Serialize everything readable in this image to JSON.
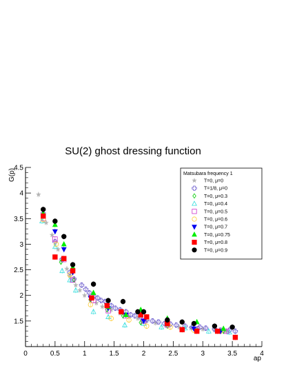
{
  "chart_data": {
    "type": "scatter",
    "title": "SU(2) ghost dressing function",
    "xlabel": "ap",
    "ylabel": "G(p)",
    "xlim": [
      0,
      4
    ],
    "ylim": [
      1,
      4.5
    ],
    "xticks": [
      0,
      0.5,
      1,
      1.5,
      2,
      2.5,
      3,
      3.5,
      4
    ],
    "yticks": [
      1.5,
      2,
      2.5,
      3,
      3.5,
      4,
      4.5
    ],
    "xtick_labels": [
      "0",
      "0.5",
      "1",
      "1.5",
      "2",
      "2.5",
      "3",
      "3.5",
      "4"
    ],
    "ytick_labels": [
      "1.5",
      "2",
      "2.5",
      "3",
      "3.5",
      "4",
      "4.5"
    ],
    "grid": false,
    "legend_title": "Matsubara frequency 1",
    "legend_position": "top-right",
    "series": [
      {
        "name": "T=0, μ=0",
        "marker": "star-filled",
        "color": "#b4b4b4",
        "points": [
          [
            0.22,
            3.97
          ],
          [
            0.3,
            3.58
          ],
          [
            0.35,
            3.42
          ],
          [
            0.45,
            3.18
          ],
          [
            0.55,
            2.9
          ],
          [
            0.62,
            2.72
          ],
          [
            0.7,
            2.52
          ],
          [
            0.75,
            2.38
          ],
          [
            0.85,
            2.2
          ],
          [
            0.92,
            2.1
          ],
          [
            1.0,
            2.0
          ],
          [
            1.1,
            1.9
          ],
          [
            1.2,
            1.85
          ],
          [
            1.3,
            1.78
          ],
          [
            1.45,
            1.72
          ],
          [
            1.6,
            1.65
          ],
          [
            1.75,
            1.58
          ],
          [
            1.9,
            1.55
          ],
          [
            2.05,
            1.5
          ],
          [
            2.2,
            1.46
          ],
          [
            2.4,
            1.42
          ],
          [
            2.6,
            1.38
          ],
          [
            2.8,
            1.36
          ],
          [
            3.0,
            1.34
          ],
          [
            3.2,
            1.32
          ],
          [
            3.4,
            1.3
          ]
        ]
      },
      {
        "name": "T=1/8, μ=0",
        "marker": "cross-open",
        "color": "#6a5acd",
        "points": [
          [
            0.3,
            3.6
          ],
          [
            0.5,
            3.05
          ],
          [
            0.62,
            2.7
          ],
          [
            0.75,
            2.45
          ],
          [
            0.82,
            2.32
          ],
          [
            0.95,
            2.2
          ],
          [
            1.02,
            2.12
          ],
          [
            1.08,
            2.05
          ],
          [
            1.15,
            1.98
          ],
          [
            1.22,
            1.95
          ],
          [
            1.28,
            1.9
          ],
          [
            1.35,
            1.88
          ],
          [
            1.45,
            1.8
          ],
          [
            1.52,
            1.75
          ],
          [
            1.6,
            1.72
          ],
          [
            1.7,
            1.68
          ],
          [
            1.78,
            1.62
          ],
          [
            1.85,
            1.6
          ],
          [
            1.95,
            1.58
          ],
          [
            2.05,
            1.52
          ],
          [
            2.15,
            1.5
          ],
          [
            2.25,
            1.48
          ],
          [
            2.35,
            1.45
          ],
          [
            2.45,
            1.44
          ],
          [
            2.55,
            1.42
          ],
          [
            2.7,
            1.4
          ],
          [
            2.82,
            1.38
          ],
          [
            2.95,
            1.38
          ],
          [
            3.05,
            1.36
          ],
          [
            3.2,
            1.34
          ],
          [
            3.3,
            1.32
          ],
          [
            3.45,
            1.32
          ],
          [
            3.55,
            1.3
          ]
        ]
      },
      {
        "name": "T=0, μ=0.3",
        "marker": "diamond-open",
        "color": "#00cc00",
        "points": [
          [
            0.3,
            3.55
          ],
          [
            0.6,
            2.65
          ],
          [
            0.82,
            2.3
          ],
          [
            1.1,
            1.92
          ],
          [
            1.38,
            1.72
          ],
          [
            1.65,
            1.6
          ],
          [
            1.95,
            1.47
          ],
          [
            2.4,
            1.4
          ],
          [
            2.9,
            1.32
          ],
          [
            3.35,
            1.3
          ]
        ]
      },
      {
        "name": "T=0, μ=0.4",
        "marker": "triangle-open",
        "color": "#33dddd",
        "points": [
          [
            0.28,
            3.45
          ],
          [
            0.5,
            2.95
          ],
          [
            0.62,
            2.48
          ],
          [
            0.75,
            2.3
          ],
          [
            0.85,
            2.1
          ],
          [
            1.15,
            1.68
          ],
          [
            1.4,
            1.58
          ],
          [
            1.68,
            1.42
          ],
          [
            2.0,
            1.45
          ],
          [
            2.3,
            1.38
          ],
          [
            2.7,
            1.36
          ],
          [
            3.1,
            1.3
          ],
          [
            3.45,
            1.28
          ]
        ]
      },
      {
        "name": "T=0, μ=0.5",
        "marker": "square-open",
        "color": "#cc33cc",
        "points": [
          [
            0.3,
            3.5
          ],
          [
            0.5,
            3.1
          ],
          [
            0.65,
            2.7
          ],
          [
            0.8,
            2.3
          ],
          [
            1.15,
            1.9
          ],
          [
            1.4,
            1.7
          ],
          [
            1.7,
            1.6
          ],
          [
            2.0,
            1.5
          ],
          [
            2.4,
            1.42
          ],
          [
            2.9,
            1.34
          ],
          [
            3.4,
            1.3
          ]
        ]
      },
      {
        "name": "T=0, μ=0.6",
        "marker": "circle-open",
        "color": "#ffcc33",
        "points": [
          [
            0.3,
            3.48
          ],
          [
            0.52,
            3.0
          ],
          [
            0.75,
            2.4
          ],
          [
            1.1,
            1.82
          ],
          [
            1.45,
            1.55
          ],
          [
            1.75,
            1.52
          ],
          [
            2.05,
            1.4
          ],
          [
            2.45,
            1.38
          ],
          [
            2.85,
            1.32
          ],
          [
            3.3,
            1.3
          ]
        ]
      },
      {
        "name": "T=0, μ=0.7",
        "marker": "triangle-down-filled",
        "color": "#0000ee",
        "points": [
          [
            0.3,
            3.55
          ],
          [
            0.5,
            3.25
          ],
          [
            0.65,
            2.9
          ],
          [
            0.8,
            2.45
          ],
          [
            1.1,
            1.95
          ],
          [
            1.4,
            1.75
          ],
          [
            1.7,
            1.62
          ],
          [
            2.0,
            1.5
          ],
          [
            2.4,
            1.45
          ],
          [
            2.85,
            1.35
          ],
          [
            3.3,
            1.3
          ]
        ]
      },
      {
        "name": "T=0, μ=0.75",
        "marker": "triangle-up-filled",
        "color": "#00ee00",
        "points": [
          [
            0.3,
            3.6
          ],
          [
            0.5,
            3.38
          ],
          [
            0.65,
            3.0
          ],
          [
            0.8,
            2.55
          ],
          [
            1.15,
            2.05
          ],
          [
            1.4,
            1.78
          ],
          [
            1.7,
            1.62
          ],
          [
            1.95,
            1.72
          ],
          [
            2.4,
            1.55
          ],
          [
            2.9,
            1.48
          ],
          [
            3.35,
            1.35
          ]
        ]
      },
      {
        "name": "T=0, μ=0.8",
        "marker": "square-filled",
        "color": "#ff0000",
        "points": [
          [
            0.3,
            3.55
          ],
          [
            0.5,
            2.75
          ],
          [
            0.65,
            2.72
          ],
          [
            0.8,
            2.48
          ],
          [
            1.12,
            1.95
          ],
          [
            1.38,
            1.8
          ],
          [
            1.62,
            1.68
          ],
          [
            1.95,
            1.62
          ],
          [
            2.05,
            1.58
          ],
          [
            2.4,
            1.45
          ],
          [
            2.65,
            1.33
          ],
          [
            2.9,
            1.3
          ],
          [
            3.25,
            1.3
          ],
          [
            3.55,
            1.18
          ]
        ]
      },
      {
        "name": "T=0, μ=0.9",
        "marker": "circle-filled",
        "color": "#000000",
        "points": [
          [
            0.3,
            3.68
          ],
          [
            0.5,
            3.45
          ],
          [
            0.65,
            3.15
          ],
          [
            0.8,
            2.6
          ],
          [
            1.15,
            2.22
          ],
          [
            1.4,
            1.9
          ],
          [
            1.65,
            1.88
          ],
          [
            1.9,
            1.68
          ],
          [
            2.0,
            1.68
          ],
          [
            2.4,
            1.52
          ],
          [
            2.65,
            1.48
          ],
          [
            2.85,
            1.45
          ],
          [
            3.2,
            1.4
          ],
          [
            3.5,
            1.38
          ]
        ]
      }
    ]
  }
}
